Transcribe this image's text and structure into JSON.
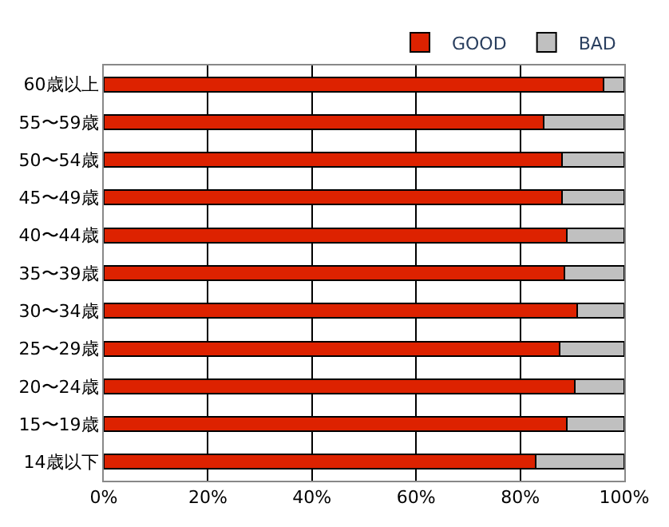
{
  "chart_data": {
    "type": "bar",
    "orientation": "horizontal",
    "stacked": true,
    "categories": [
      "60歳以上",
      "55〜59歳",
      "50〜54歳",
      "45〜49歳",
      "40〜44歳",
      "35〜39歳",
      "30〜34歳",
      "25〜29歳",
      "20〜24歳",
      "15〜19歳",
      "14歳以下"
    ],
    "series": [
      {
        "name": "GOOD",
        "color": "#dd2200",
        "values": [
          96,
          84.5,
          88,
          88,
          89,
          88.5,
          91,
          87.5,
          90.5,
          89,
          83
        ]
      },
      {
        "name": "BAD",
        "color": "#c0c0c0",
        "values": [
          4,
          15.5,
          12,
          12,
          11,
          11.5,
          9,
          12.5,
          9.5,
          11,
          17
        ]
      }
    ],
    "xlim": [
      0,
      100
    ],
    "xticks": [
      {
        "value": 0,
        "label": "0%"
      },
      {
        "value": 20,
        "label": "20%"
      },
      {
        "value": 40,
        "label": "40%"
      },
      {
        "value": 60,
        "label": "60%"
      },
      {
        "value": 80,
        "label": "80%"
      },
      {
        "value": 100,
        "label": "100%"
      }
    ],
    "grid": "x",
    "legend": "top"
  }
}
